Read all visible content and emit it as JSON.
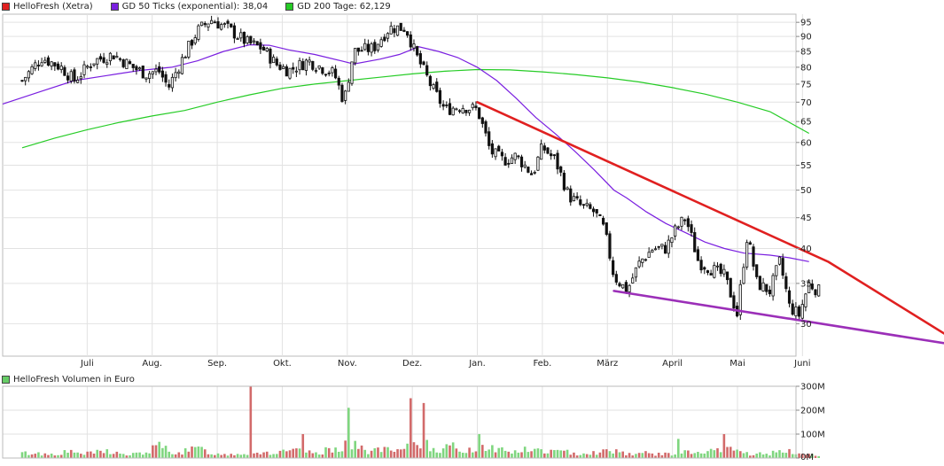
{
  "price_chart": {
    "legend": [
      {
        "label": "HelloFresh (Xetra)",
        "color": "#e02020"
      },
      {
        "label": "GD 50 Ticks (exponential): 38,04",
        "color": "#7a1fe0"
      },
      {
        "label": "GD 200 Tage: 62,129",
        "color": "#26cc26"
      }
    ]
  },
  "volume_chart": {
    "legend": {
      "label": "HelloFresh Volumen in Euro",
      "color": "#66cc66"
    }
  },
  "chart_data": [
    {
      "type": "line",
      "subtype": "candlestick",
      "title": "",
      "y_axis": {
        "scale": "log",
        "range": [
          26.5,
          98
        ],
        "ticks": [
          30,
          35,
          40,
          45,
          50,
          55,
          60,
          65,
          70,
          75,
          80,
          85,
          90,
          95
        ]
      },
      "x_axis": {
        "range_months": [
          -0.3,
          11.9
        ],
        "month_labels": [
          {
            "label": "Juli",
            "pos": 1
          },
          {
            "label": "Aug.",
            "pos": 2
          },
          {
            "label": "Sep.",
            "pos": 3
          },
          {
            "label": "Okt.",
            "pos": 4
          },
          {
            "label": "Nov.",
            "pos": 5
          },
          {
            "label": "Dez.",
            "pos": 6
          },
          {
            "label": "Jan.",
            "pos": 7
          },
          {
            "label": "Feb.",
            "pos": 8
          },
          {
            "label": "März",
            "pos": 9
          },
          {
            "label": "April",
            "pos": 10
          },
          {
            "label": "Mai",
            "pos": 11
          },
          {
            "label": "Juni",
            "pos": 12
          }
        ]
      },
      "grid": true,
      "legend_position": "top-left",
      "series": [
        {
          "name": "HelloFresh (Xetra)",
          "kind": "close",
          "color": "#222222",
          "points": [
            [
              0,
              76
            ],
            [
              0.3,
              83
            ],
            [
              0.6,
              80
            ],
            [
              0.8,
              76
            ],
            [
              1.1,
              82
            ],
            [
              1.4,
              84
            ],
            [
              1.7,
              80
            ],
            [
              1.9,
              78
            ],
            [
              2.1,
              79
            ],
            [
              2.25,
              74
            ],
            [
              2.45,
              82
            ],
            [
              2.7,
              92
            ],
            [
              2.9,
              96
            ],
            [
              3.15,
              93
            ],
            [
              3.45,
              88
            ],
            [
              3.7,
              86
            ],
            [
              3.9,
              81
            ],
            [
              4.1,
              79
            ],
            [
              4.4,
              82
            ],
            [
              4.6,
              80
            ],
            [
              4.8,
              78
            ],
            [
              4.95,
              70
            ],
            [
              5.1,
              85
            ],
            [
              5.4,
              86
            ],
            [
              5.65,
              93
            ],
            [
              5.9,
              93
            ],
            [
              6.05,
              84
            ],
            [
              6.3,
              74
            ],
            [
              6.5,
              68
            ],
            [
              6.75,
              69
            ],
            [
              7.0,
              68
            ],
            [
              7.2,
              58
            ],
            [
              7.4,
              56
            ],
            [
              7.6,
              57
            ],
            [
              7.85,
              53
            ],
            [
              8.0,
              59
            ],
            [
              8.2,
              56
            ],
            [
              8.4,
              49
            ],
            [
              8.6,
              47
            ],
            [
              8.8,
              46
            ],
            [
              8.95,
              43
            ],
            [
              9.1,
              36
            ],
            [
              9.3,
              34
            ],
            [
              9.5,
              38
            ],
            [
              9.7,
              40
            ],
            [
              9.9,
              40
            ],
            [
              10.05,
              43
            ],
            [
              10.2,
              45
            ],
            [
              10.4,
              38
            ],
            [
              10.6,
              37
            ],
            [
              10.8,
              36
            ],
            [
              11.0,
              31
            ],
            [
              11.15,
              42
            ],
            [
              11.3,
              35
            ],
            [
              11.5,
              34
            ],
            [
              11.65,
              38
            ],
            [
              11.8,
              32
            ],
            [
              11.95,
              31
            ],
            [
              12.1,
              35
            ],
            [
              12.25,
              34
            ]
          ]
        },
        {
          "name": "GD 50 Ticks (exponential): 38,04",
          "kind": "average",
          "color": "#7a1fe0",
          "points": [
            [
              -0.3,
              69.5
            ],
            [
              0.3,
              73
            ],
            [
              0.8,
              76
            ],
            [
              1.3,
              77.5
            ],
            [
              1.8,
              79
            ],
            [
              2.3,
              80
            ],
            [
              2.7,
              82
            ],
            [
              3.1,
              85
            ],
            [
              3.5,
              87.2
            ],
            [
              3.8,
              87
            ],
            [
              4.1,
              85.5
            ],
            [
              4.5,
              84
            ],
            [
              4.9,
              82
            ],
            [
              5.1,
              81
            ],
            [
              5.5,
              82.5
            ],
            [
              5.8,
              84
            ],
            [
              6.1,
              86.5
            ],
            [
              6.4,
              85
            ],
            [
              6.7,
              83
            ],
            [
              7.0,
              80
            ],
            [
              7.3,
              76
            ],
            [
              7.6,
              71
            ],
            [
              7.9,
              66
            ],
            [
              8.2,
              62
            ],
            [
              8.5,
              58
            ],
            [
              8.8,
              54
            ],
            [
              9.1,
              50
            ],
            [
              9.3,
              48.5
            ],
            [
              9.6,
              46
            ],
            [
              9.9,
              44
            ],
            [
              10.2,
              42.5
            ],
            [
              10.5,
              41
            ],
            [
              10.8,
              40
            ],
            [
              11.1,
              39.3
            ],
            [
              11.5,
              39
            ],
            [
              11.8,
              38.6
            ],
            [
              12.1,
              38.04
            ]
          ]
        },
        {
          "name": "GD 200 Tage: 62,129",
          "kind": "average",
          "color": "#26cc26",
          "points": [
            [
              0.0,
              58.8
            ],
            [
              0.5,
              61
            ],
            [
              1.0,
              63
            ],
            [
              1.5,
              64.8
            ],
            [
              2.0,
              66.4
            ],
            [
              2.5,
              67.8
            ],
            [
              3.0,
              70
            ],
            [
              3.5,
              72
            ],
            [
              4.0,
              73.8
            ],
            [
              4.5,
              75
            ],
            [
              5.0,
              76
            ],
            [
              5.5,
              77
            ],
            [
              6.0,
              78
            ],
            [
              6.5,
              78.8
            ],
            [
              7.0,
              79.3
            ],
            [
              7.5,
              79.2
            ],
            [
              8.0,
              78.6
            ],
            [
              8.5,
              77.8
            ],
            [
              9.0,
              76.8
            ],
            [
              9.5,
              75.6
            ],
            [
              10.0,
              74
            ],
            [
              10.5,
              72.2
            ],
            [
              11.0,
              70
            ],
            [
              11.5,
              67.5
            ],
            [
              12.1,
              62.129
            ]
          ]
        },
        {
          "name": "",
          "kind": "trendline",
          "color": "#e02020",
          "points": [
            [
              7.0,
              70
            ],
            [
              12.4,
              38
            ],
            [
              14.5,
              27.5
            ]
          ]
        },
        {
          "name": "",
          "kind": "trendline",
          "color": "#9b2fb8",
          "points": [
            [
              9.1,
              34
            ],
            [
              14.5,
              27.5
            ]
          ]
        }
      ]
    },
    {
      "type": "bar",
      "title": "",
      "y_axis": {
        "range": [
          0,
          300
        ],
        "unit": "M",
        "ticks": [
          0,
          100,
          200,
          300
        ],
        "tick_labels": [
          "0M",
          "100M",
          "200M",
          "300M"
        ]
      },
      "series": [
        {
          "name": "HelloFresh Volumen in Euro",
          "bars": [
            [
              0.2,
              20
            ],
            [
              0.4,
              15
            ],
            [
              0.7,
              25
            ],
            [
              1.0,
              18
            ],
            [
              1.3,
              30
            ],
            [
              1.6,
              12
            ],
            [
              1.9,
              22
            ],
            [
              2.1,
              50
            ],
            [
              2.4,
              20
            ],
            [
              2.7,
              40
            ],
            [
              3.0,
              15
            ],
            [
              3.3,
              18
            ],
            [
              3.6,
              25
            ],
            [
              3.9,
              20
            ],
            [
              4.2,
              30
            ],
            [
              4.5,
              18
            ],
            [
              4.8,
              40
            ],
            [
              5.0,
              60
            ],
            [
              5.3,
              30
            ],
            [
              5.5,
              35
            ],
            [
              5.8,
              25
            ],
            [
              6.0,
              50
            ],
            [
              6.2,
              65
            ],
            [
              6.4,
              35
            ],
            [
              6.6,
              45
            ],
            [
              6.9,
              30
            ],
            [
              7.1,
              50
            ],
            [
              7.3,
              40
            ],
            [
              7.5,
              25
            ],
            [
              7.8,
              35
            ],
            [
              8.0,
              30
            ],
            [
              8.3,
              25
            ],
            [
              8.6,
              20
            ],
            [
              8.9,
              25
            ],
            [
              9.1,
              35
            ],
            [
              9.3,
              18
            ],
            [
              9.6,
              20
            ],
            [
              9.9,
              15
            ],
            [
              10.1,
              25
            ],
            [
              10.4,
              20
            ],
            [
              10.7,
              30
            ],
            [
              10.9,
              40
            ],
            [
              11.2,
              15
            ],
            [
              11.5,
              20
            ],
            [
              11.8,
              25
            ],
            [
              12.1,
              15
            ]
          ],
          "spikes": [
            [
              3.5,
              300
            ],
            [
              5.0,
              210
            ],
            [
              5.95,
              250
            ],
            [
              6.2,
              230
            ],
            [
              4.3,
              100
            ],
            [
              7.05,
              100
            ],
            [
              10.1,
              80
            ],
            [
              10.8,
              100
            ]
          ]
        }
      ]
    }
  ]
}
